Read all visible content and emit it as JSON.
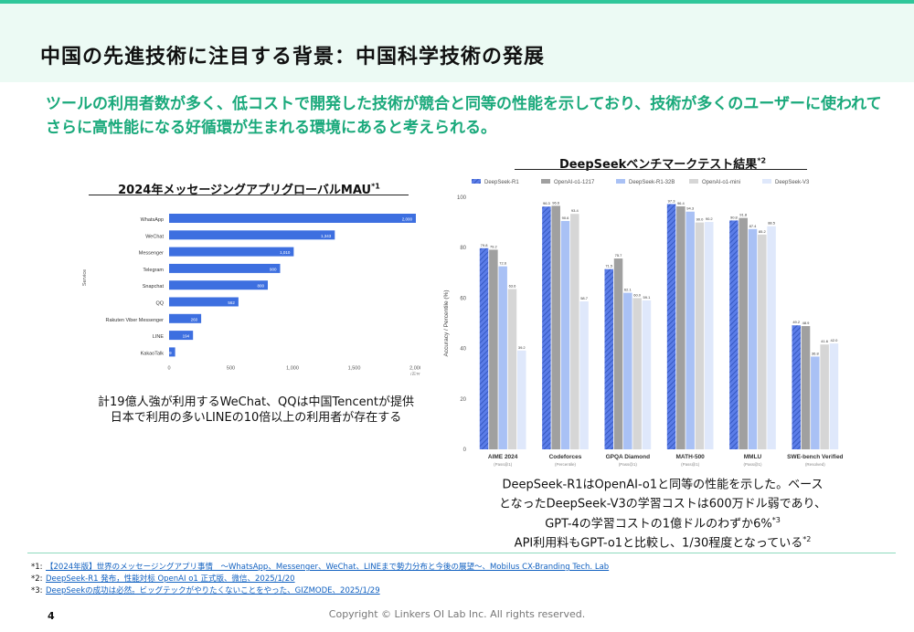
{
  "title": "中国の先進技術に注目する背景：中国科学技術の発展",
  "lead": "ツールの利用者数が多く、低コストで開発した技術が競合と同等の性能を示しており、技術が多くのユーザーに使われてさらに高性能になる好循環が生まれる環境にあると考えられる。",
  "left_section": {
    "title": "2024年メッセージングアプリグローバルMAU",
    "ref": "*1",
    "caption_lines": [
      "計19億人強が利用するWeChat、QQは中国Tencentが提供",
      "日本で利用の多いLINEの10倍以上の利用者が存在する"
    ]
  },
  "right_section": {
    "title": "DeepSeekベンチマークテスト結果",
    "ref": "*2",
    "caption_lines": [
      "DeepSeek-R1はOpenAI-o1と同等の性能を示した。ベース",
      "となったDeepSeek-V3の学習コストは600万ドル弱であり、",
      "GPT-4の学習コストの1億ドルのわずか6%",
      "API利用料もGPT-o1と比較し、1/30程度となっている"
    ],
    "caption_refs": [
      "",
      "",
      "*3",
      "*2"
    ]
  },
  "chart_data": [
    {
      "type": "bar",
      "orientation": "horizontal",
      "ylabel": "Service",
      "xlabel": "(百万)",
      "categories": [
        "WhatsApp",
        "WeChat",
        "Messenger",
        "Telegram",
        "Snapchat",
        "QQ",
        "Rakuten Viber Messenger",
        "LINE",
        "KakaoTalk"
      ],
      "values": [
        2000,
        1343,
        1010,
        900,
        800,
        562,
        260,
        194,
        49
      ],
      "value_labels": [
        "2,000",
        "1,343",
        "1,010",
        "900",
        "800",
        "562",
        "260",
        "194",
        "49"
      ],
      "xticks": [
        "0",
        "500",
        "1,000",
        "1,500",
        "2,000"
      ],
      "xlim": [
        0,
        2000
      ],
      "color": "#3d6fe0",
      "grid": false
    },
    {
      "type": "bar",
      "ylabel": "Accuracy / Percentile (%)",
      "ylim": [
        0,
        100
      ],
      "yticks": [
        "0",
        "20",
        "40",
        "60",
        "80",
        "100"
      ],
      "categories": [
        "AIME 2024",
        "Codeforces",
        "GPQA Diamond",
        "MATH-500",
        "MMLU",
        "SWE-bench Verified"
      ],
      "category_sublabels": [
        "(Pass@1)",
        "(Percentile)",
        "(Pass@1)",
        "(Pass@1)",
        "(Pass@1)",
        "(Resolved)"
      ],
      "legend_position": "top",
      "series": [
        {
          "name": "DeepSeek-R1",
          "values": [
            79.8,
            96.3,
            71.5,
            97.3,
            90.8,
            49.2
          ],
          "color": "#5b7de8",
          "hatched": true
        },
        {
          "name": "OpenAI-o1-1217",
          "values": [
            79.2,
            96.6,
            75.7,
            96.4,
            91.8,
            48.9
          ],
          "color": "#a0a0a0"
        },
        {
          "name": "DeepSeek-R1-32B",
          "values": [
            72.6,
            90.6,
            62.1,
            94.3,
            87.4,
            36.8
          ],
          "color": "#a9c1f5"
        },
        {
          "name": "OpenAI-o1-mini",
          "values": [
            63.6,
            93.4,
            60.0,
            90.0,
            85.2,
            41.6
          ],
          "color": "#d6d6d6"
        },
        {
          "name": "DeepSeek-V3",
          "values": [
            39.2,
            58.7,
            59.1,
            90.2,
            88.5,
            42.0
          ],
          "color": "#dfe8fb"
        }
      ]
    }
  ],
  "footnotes": [
    {
      "mark": "*1:",
      "text": "【2024年版】世界のメッセージングアプリ事情　～WhatsApp、Messenger、WeChat、LINEまで勢力分布と今後の展望～、Mobilus CX-Branding Tech. Lab"
    },
    {
      "mark": "*2:",
      "text": "DeepSeek-R1 発布，性能対标 OpenAI o1 正式版、微信、2025/1/20"
    },
    {
      "mark": "*3:",
      "text": "DeepSeekの成功は必然。ビッグテックがやりたくないことをやった、GIZMODE、2025/1/29"
    }
  ],
  "page_number": "4",
  "copyright": "Copyright © Linkers OI Lab Inc. All rights reserved."
}
